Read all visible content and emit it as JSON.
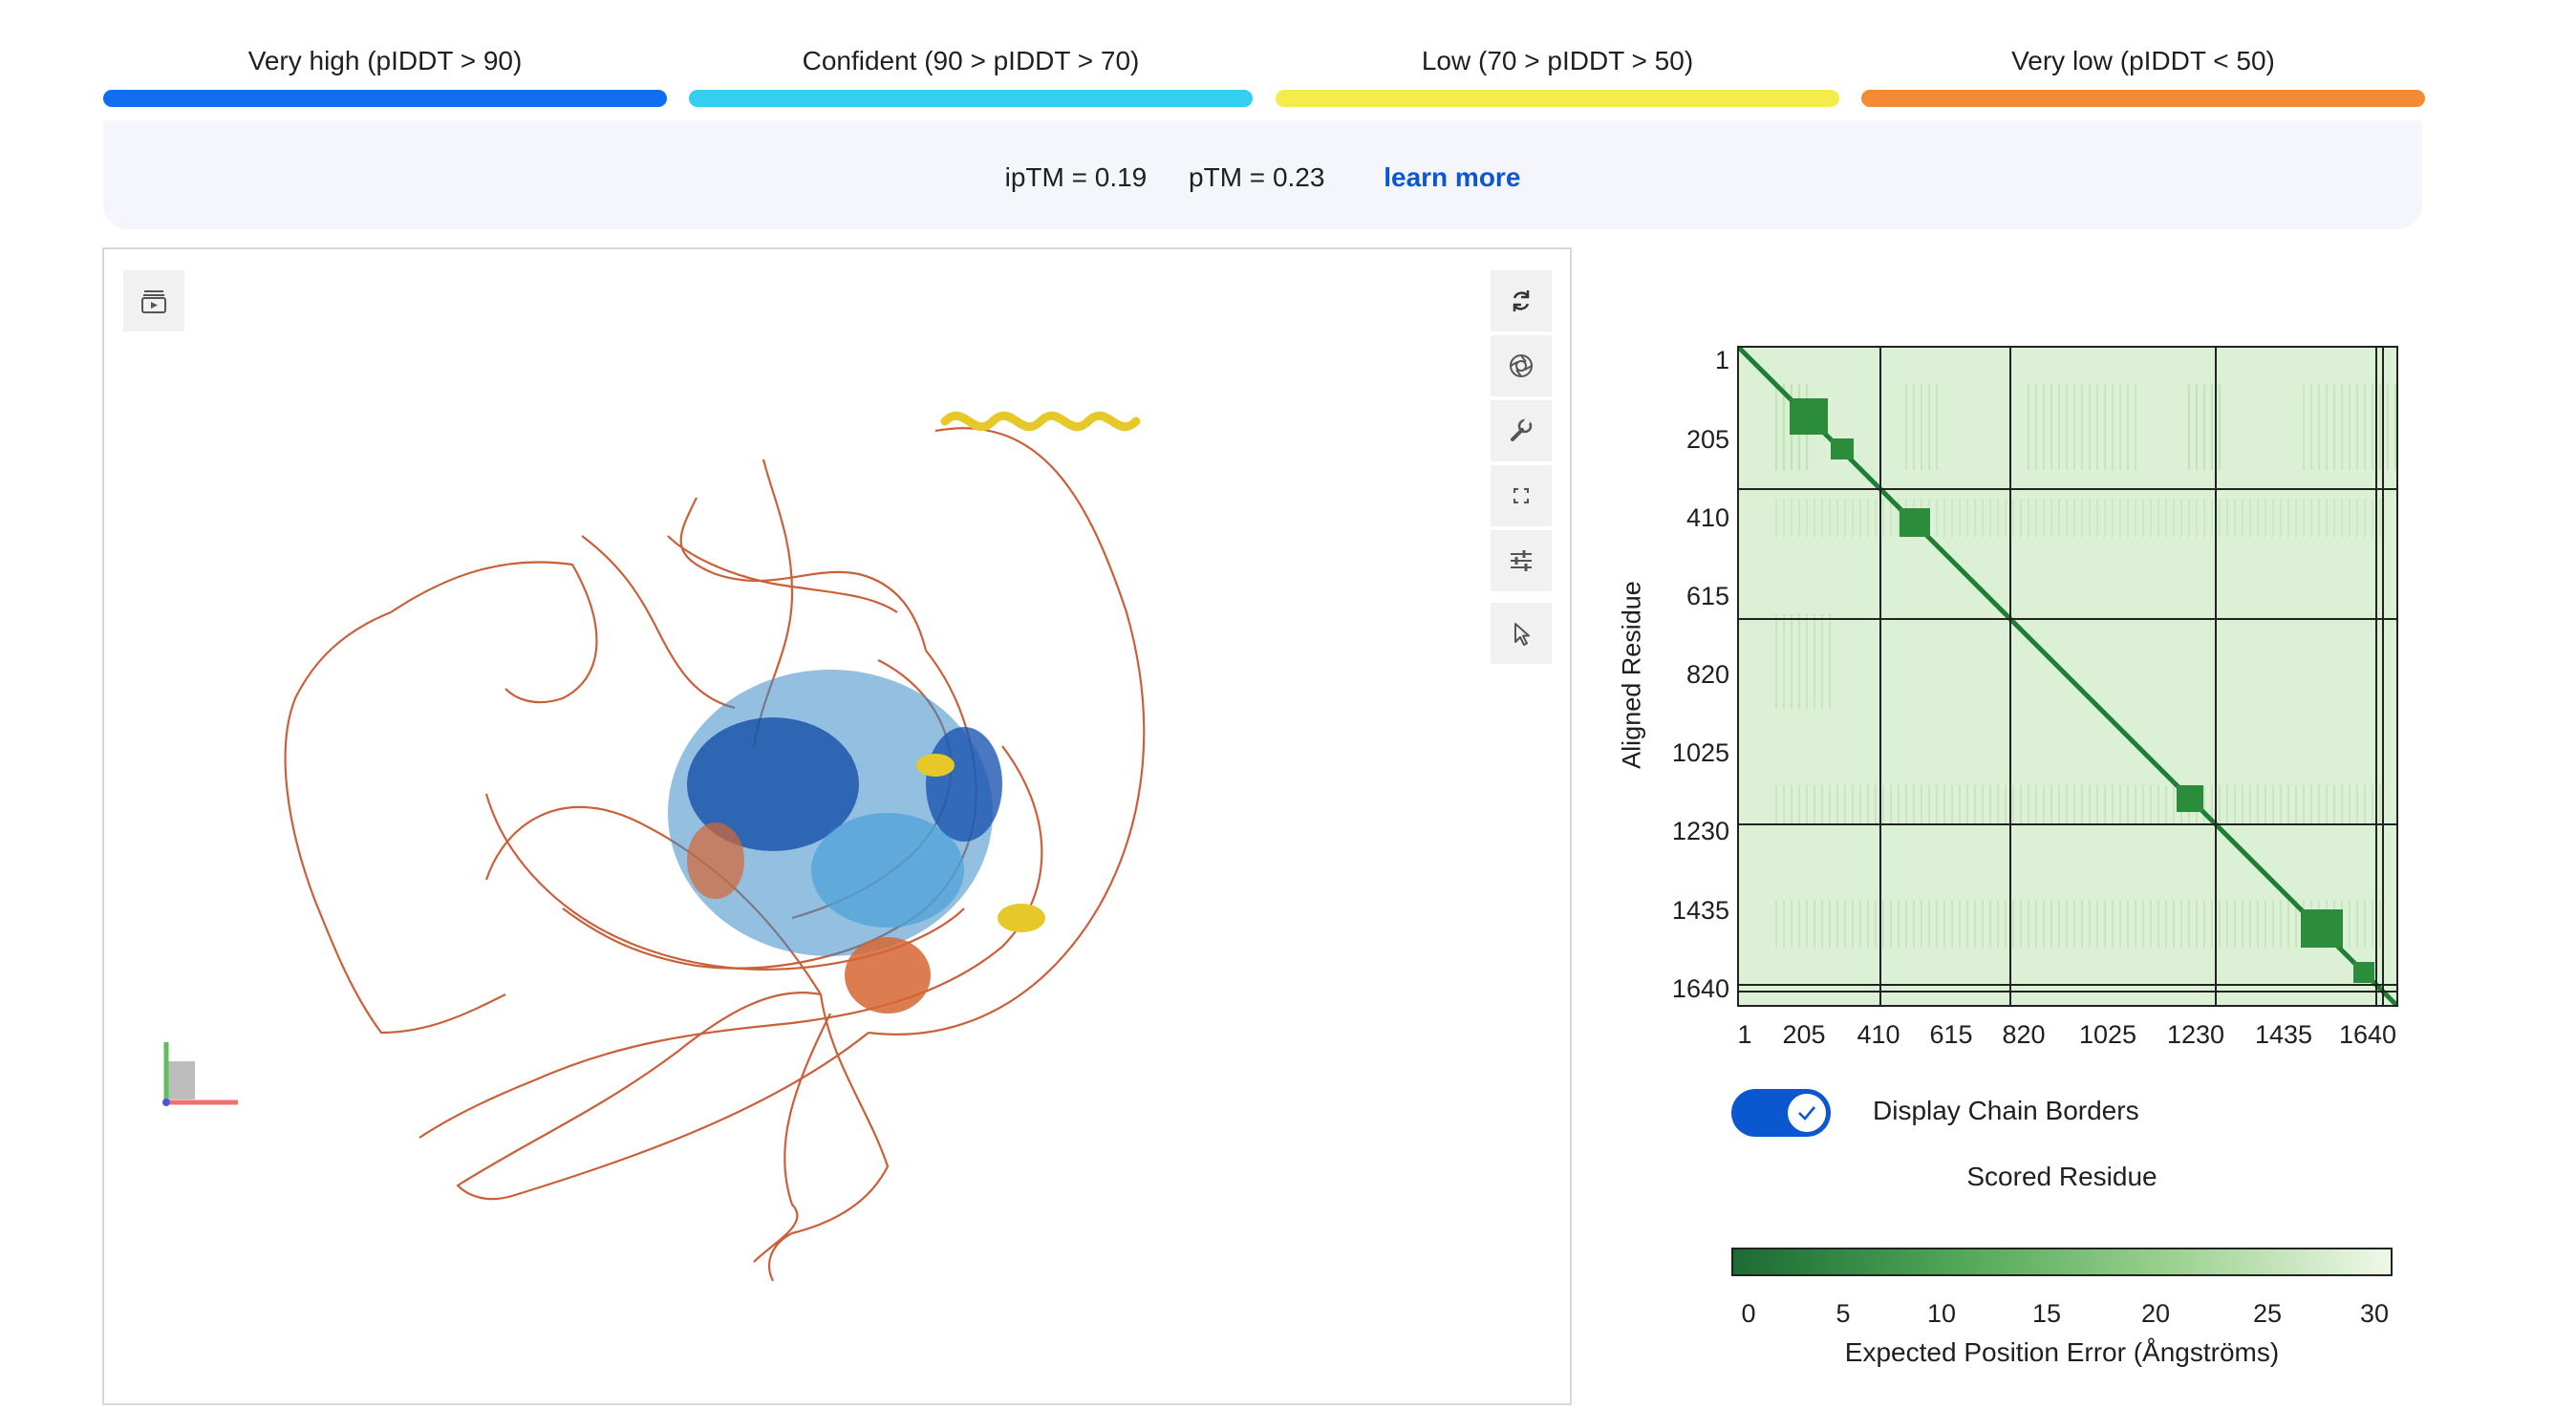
{
  "legend": [
    {
      "label": "Very high (pIDDT > 90)",
      "color": "#0f6ef0"
    },
    {
      "label": "Confident (90 > pIDDT > 70)",
      "color": "#33cfee"
    },
    {
      "label": "Low (70 > pIDDT > 50)",
      "color": "#f4ec4a"
    },
    {
      "label": "Very low (pIDDT < 50)",
      "color": "#f28b33"
    }
  ],
  "metrics": {
    "iptm": "ipTM = 0.19",
    "ptm": "pTM = 0.23",
    "learn_more": "learn more"
  },
  "viewer": {
    "left_button_icon": "playback-layout-icon",
    "toolbar_icons": [
      "reset-rotation-icon",
      "screenshot-icon",
      "wrench-icon",
      "fullscreen-icon",
      "settings-sliders-icon",
      "select-cursor-icon"
    ]
  },
  "pae": {
    "y_axis_label": "Aligned Residue",
    "y_ticks": [
      "1",
      "205",
      "410",
      "615",
      "820",
      "1025",
      "1230",
      "1435",
      "1640"
    ],
    "x_ticks": [
      "1",
      "205",
      "410",
      "615",
      "820",
      "1025",
      "1230",
      "1435",
      "1640"
    ],
    "toggle_label": "Display Chain Borders",
    "toggle_on": true,
    "x_axis_label": "Scored Residue",
    "colorbar_ticks": [
      "0",
      "5",
      "10",
      "15",
      "20",
      "25",
      "30"
    ],
    "colorbar_label": "Expected Position Error (Ångströms)",
    "colors": {
      "low_error": "#1b6a34",
      "high_error": "#eff8e8"
    }
  }
}
